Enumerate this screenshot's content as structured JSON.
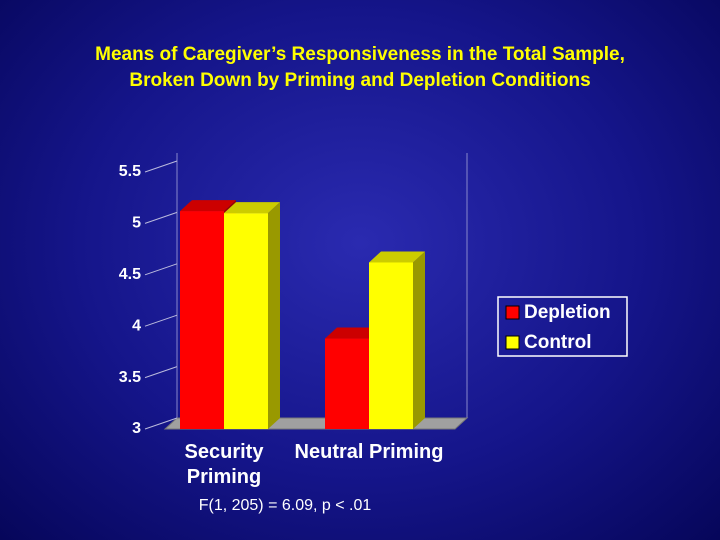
{
  "chart_data": {
    "type": "bar3d",
    "title": [
      "Means of Caregiver’s Responsiveness in the Total Sample,",
      "Broken Down by Priming and Depletion Conditions"
    ],
    "categories": [
      "Security Priming",
      "Neutral Priming"
    ],
    "series": [
      {
        "name": "Depletion",
        "color": "#ff0000",
        "values": [
          5.12,
          3.88
        ]
      },
      {
        "name": "Control",
        "color": "#ffff00",
        "values": [
          5.1,
          4.62
        ]
      }
    ],
    "ylim": [
      3,
      5.5
    ],
    "yticks": [
      3,
      3.5,
      4,
      4.5,
      5,
      5.5
    ],
    "legend": "right",
    "annotation": "F(1, 205) = 6.09, p < .01"
  }
}
